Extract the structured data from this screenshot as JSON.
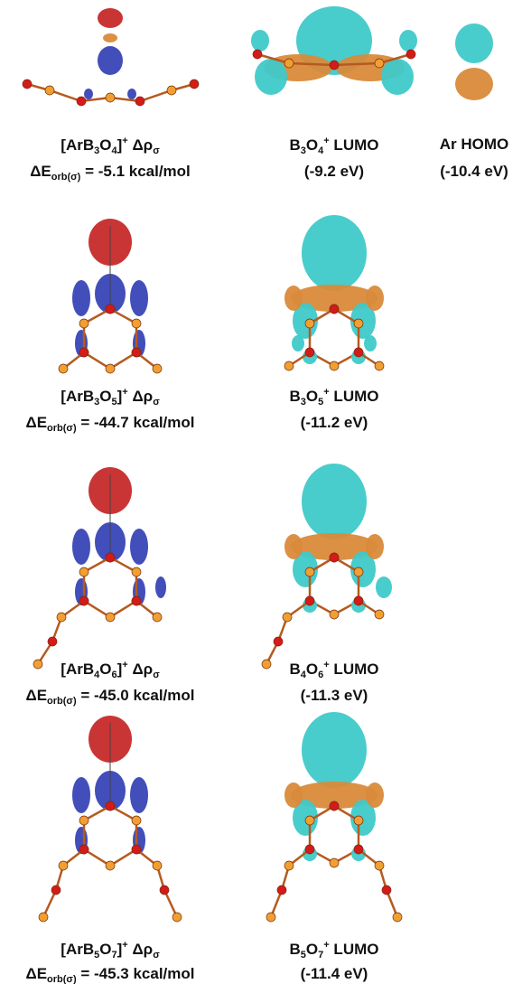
{
  "panels": [
    {
      "density_label": [
        "[ArB",
        "3",
        "O",
        "4",
        "]",
        "+",
        " Δρ",
        "σ"
      ],
      "energy_label": [
        "ΔE",
        "orb(σ)",
        " = -5.1 kcal/mol"
      ],
      "lumo_label": [
        "B",
        "3",
        "O",
        "4",
        "+",
        " LUMO"
      ],
      "lumo_energy": "(-9.2 eV)"
    },
    {
      "density_label": [
        "[ArB",
        "3",
        "O",
        "5",
        "]",
        "+",
        " Δρ",
        "σ"
      ],
      "energy_label": [
        "ΔE",
        "orb(σ)",
        " = -44.7 kcal/mol"
      ],
      "lumo_label": [
        "B",
        "3",
        "O",
        "5",
        "+",
        " LUMO"
      ],
      "lumo_energy": "(-11.2 eV)"
    },
    {
      "density_label": [
        "[ArB",
        "4",
        "O",
        "6",
        "]",
        "+",
        " Δρ",
        "σ"
      ],
      "energy_label": [
        "ΔE",
        "orb(σ)",
        " = -45.0 kcal/mol"
      ],
      "lumo_label": [
        "B",
        "4",
        "O",
        "6",
        "+",
        " LUMO"
      ],
      "lumo_energy": "(-11.3 eV)"
    },
    {
      "density_label": [
        "[ArB",
        "5",
        "O",
        "7",
        "]",
        "+",
        " Δρ",
        "σ"
      ],
      "energy_label": [
        "ΔE",
        "orb(σ)",
        " = -45.3 kcal/mol"
      ],
      "lumo_label": [
        "B",
        "5",
        "O",
        "7",
        "+",
        " LUMO"
      ],
      "lumo_energy": "(-11.4 eV)"
    }
  ],
  "ar_homo": {
    "label": "Ar HOMO",
    "energy": "(-10.4 eV)"
  }
}
